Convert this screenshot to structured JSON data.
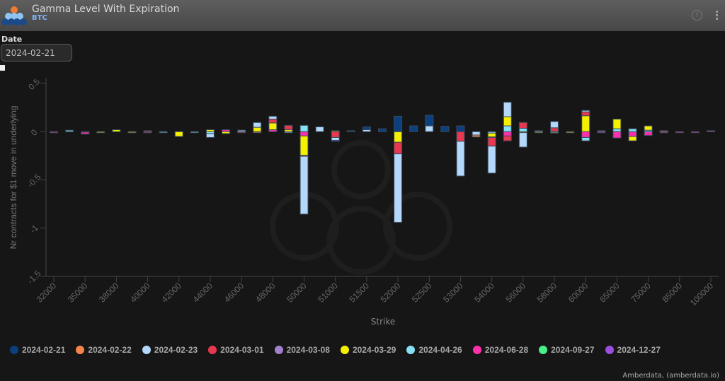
{
  "header": {
    "title": "Gamma Level With Expiration",
    "subtitle": "BTC",
    "info_icon": "info-icon",
    "menu_icon": "kebab-menu-icon"
  },
  "filters": {
    "date_label": "Date",
    "date_value": "2024-02-21"
  },
  "credit": "Amberdata, (amberdata.io)",
  "chart_data": {
    "type": "bar",
    "stacked": true,
    "title": "Gamma Level With Expiration",
    "xlabel": "Strike",
    "ylabel": "Nr contracts for $1 move in underlying",
    "ylim": [
      -1.5,
      0.5
    ],
    "yticks": [
      0.5,
      0,
      -0.5,
      -1,
      -1.5
    ],
    "ytick_labels": [
      "0.5",
      "0",
      "-0.5",
      "-1",
      "-1.5"
    ],
    "grid": false,
    "legend_position": "bottom-left",
    "categories": [
      "32000",
      "",
      "35000",
      "",
      "38000",
      "",
      "40000",
      "",
      "42000",
      "",
      "44000",
      "",
      "46000",
      "",
      "48000",
      "",
      "50000",
      "",
      "51000",
      "",
      "51500",
      "",
      "52000",
      "",
      "52500",
      "",
      "53000",
      "",
      "54000",
      "",
      "56000",
      "",
      "58000",
      "",
      "60000",
      "",
      "65000",
      "",
      "75000",
      "",
      "85000",
      "",
      "100000"
    ],
    "series": [
      {
        "name": "2024-02-21",
        "color": "#0b3f7e",
        "points": {
          "18": -0.01,
          "19": 0.01,
          "20": 0.03,
          "21": 0.03,
          "22": 0.16,
          "23": 0.06,
          "24": 0.11,
          "25": 0.055,
          "26": 0.06
        }
      },
      {
        "name": "2024-02-22",
        "color": "#f5854a",
        "points": {
          "13": -0.005,
          "27": -0.02,
          "39": 0.01
        }
      },
      {
        "name": "2024-02-23",
        "color": "#b3d8fb",
        "points": {
          "10": -0.04,
          "12": 0.015,
          "13": 0.05,
          "14": 0.03,
          "15": -0.01,
          "16": -0.6,
          "17": 0.05,
          "18": -0.03,
          "20": 0.02,
          "22": -0.71,
          "24": 0.06,
          "26": -0.36,
          "27": -0.035,
          "28": -0.28,
          "29": 0.15,
          "30": -0.15,
          "32": 0.065,
          "34": 0.015
        }
      },
      {
        "name": "2024-03-01",
        "color": "#e8384f",
        "points": {
          "6": -0.01,
          "12": -0.01,
          "14": 0.04,
          "15": 0.045,
          "16": -0.01,
          "18": -0.06,
          "22": -0.12,
          "26": -0.1,
          "28": -0.09,
          "29": -0.05,
          "30": 0.06,
          "32": 0.035,
          "34": 0.04
        }
      },
      {
        "name": "2024-03-08",
        "color": "#a380cc",
        "points": {
          "28": -0.005,
          "31": 0.01,
          "32": 0.005,
          "35": 0.01
        }
      },
      {
        "name": "2024-03-29",
        "color": "#f5f000",
        "points": {
          "3": -0.01,
          "4": 0.02,
          "5": -0.01,
          "8": -0.05,
          "10": 0.02,
          "11": -0.02,
          "13": 0.045,
          "14": 0.07,
          "15": 0.02,
          "16": -0.2,
          "18": 0.01,
          "22": -0.11,
          "28": -0.04,
          "29": 0.095,
          "30": -0.01,
          "31": -0.01,
          "32": -0.015,
          "33": -0.01,
          "34": 0.165,
          "36": 0.1,
          "37": -0.045,
          "38": 0.045
        }
      },
      {
        "name": "2024-04-26",
        "color": "#86e1f7",
        "points": {
          "1": 0.015,
          "7": -0.01,
          "9": -0.01,
          "10": -0.02,
          "16": 0.065,
          "28": -0.015,
          "29": 0.06,
          "30": 0.035,
          "34": -0.035,
          "36": 0.03,
          "37": 0.03,
          "38": 0.015
        }
      },
      {
        "name": "2024-06-28",
        "color": "#fd30ad",
        "points": {
          "0": -0.01,
          "2": -0.02,
          "6": 0.01,
          "11": 0.02,
          "14": 0.02,
          "16": -0.045,
          "29": -0.045,
          "34": -0.06,
          "35": -0.005,
          "36": -0.065,
          "37": -0.05,
          "38": -0.04,
          "39": -0.01,
          "40": -0.01,
          "41": -0.01,
          "42": 0.01
        }
      },
      {
        "name": "2024-09-27",
        "color": "#46f08a",
        "points": {
          "2": -0.005
        }
      },
      {
        "name": "2024-12-27",
        "color": "#9b4fdc",
        "points": {}
      }
    ]
  }
}
